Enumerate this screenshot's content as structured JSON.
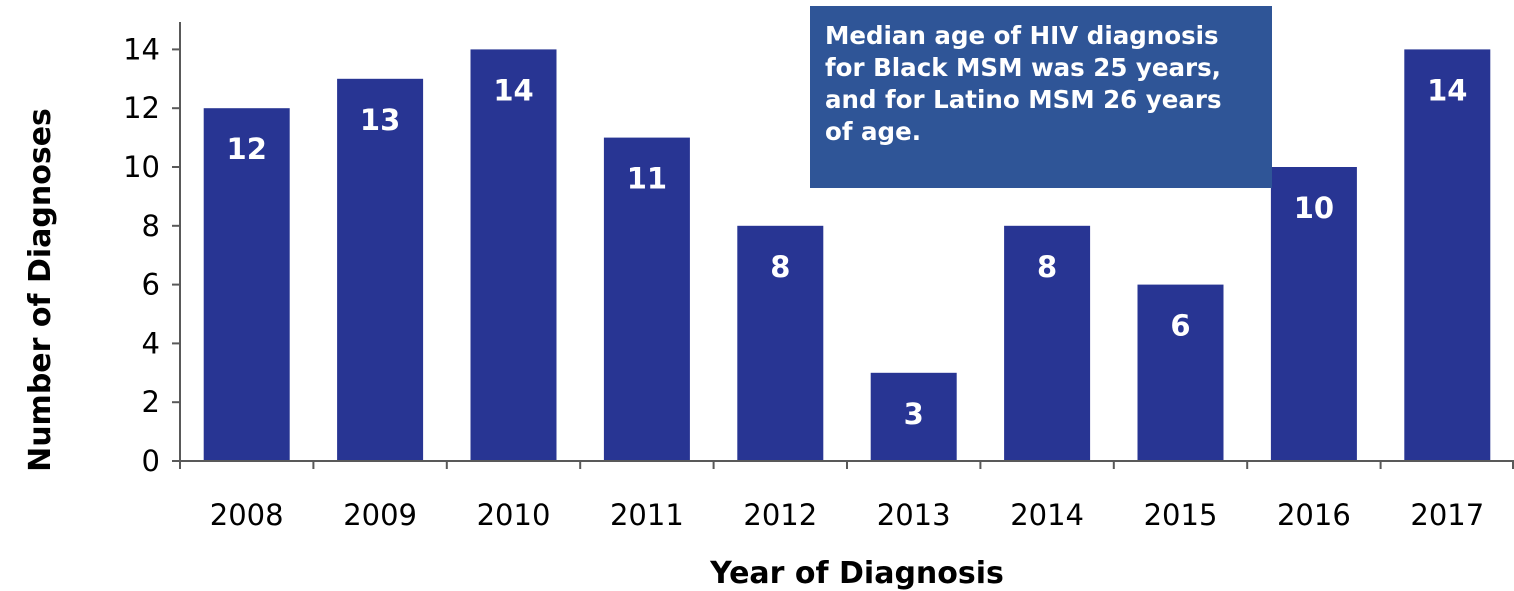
{
  "chart_data": {
    "type": "bar",
    "categories": [
      "2008",
      "2009",
      "2010",
      "2011",
      "2012",
      "2013",
      "2014",
      "2015",
      "2016",
      "2017"
    ],
    "values": [
      12,
      13,
      14,
      11,
      8,
      3,
      8,
      6,
      10,
      14
    ],
    "data_labels": [
      "12",
      "13",
      "14",
      "11",
      "8",
      "3",
      "8",
      "6",
      "10",
      "14"
    ],
    "xlabel": "Year of Diagnosis",
    "ylabel": "Number of Diagnoses",
    "ylim": [
      0,
      15
    ],
    "yticks": [
      0,
      2,
      4,
      6,
      8,
      10,
      12,
      14
    ],
    "ytick_labels": [
      "0",
      "2",
      "4",
      "6",
      "8",
      "10",
      "12",
      "14"
    ],
    "grid": false,
    "bar_color": "#283593",
    "label_color": "#ffffff"
  },
  "annotation": {
    "lines": [
      "Median age of HIV diagnosis",
      "for Black MSM was 25 years,",
      "and for Latino MSM 26 years",
      "of age."
    ],
    "background_color": "#2f5597",
    "text_color": "#ffffff"
  }
}
